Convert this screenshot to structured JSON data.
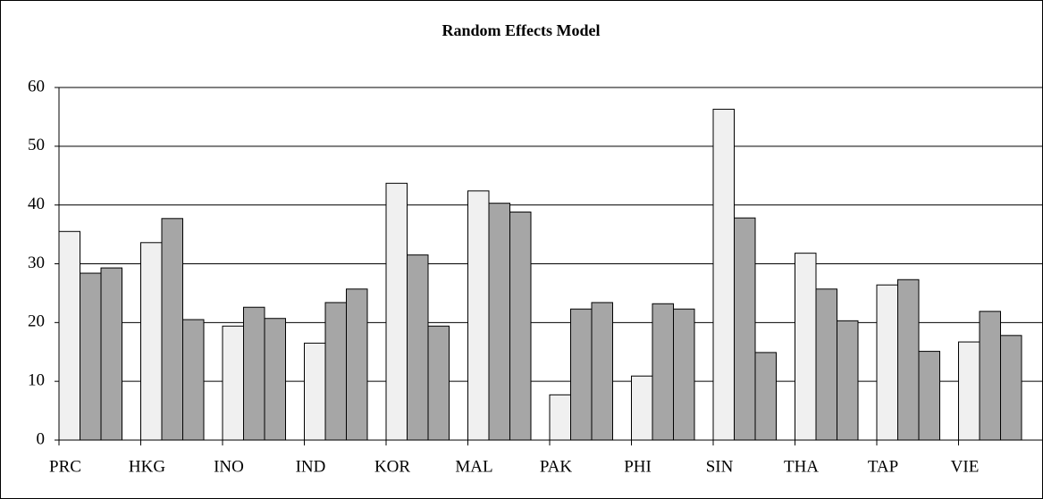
{
  "chart_data": {
    "type": "bar",
    "title": "Random Effects Model",
    "categories": [
      "PRC",
      "HKG",
      "INO",
      "IND",
      "KOR",
      "MAL",
      "PAK",
      "PHI",
      "SIN",
      "THA",
      "TAP",
      "VIE"
    ],
    "series": [
      {
        "color": "#f0f0f0",
        "values": [
          35.5,
          33.6,
          19.4,
          16.5,
          43.7,
          42.4,
          7.7,
          10.9,
          56.3,
          31.8,
          26.4,
          16.7
        ]
      },
      {
        "color": "#a6a6a6",
        "values": [
          28.4,
          37.7,
          22.6,
          23.4,
          31.5,
          40.3,
          22.3,
          23.2,
          37.8,
          25.7,
          27.3,
          21.9
        ]
      },
      {
        "color": "#a6a6a6",
        "values": [
          29.3,
          20.5,
          20.7,
          25.7,
          19.4,
          38.8,
          23.4,
          22.3,
          14.9,
          20.3,
          15.1,
          17.8
        ]
      }
    ],
    "ylim": [
      0,
      60
    ],
    "yticks": [
      0,
      10,
      20,
      30,
      40,
      50,
      60
    ],
    "grid": true
  }
}
